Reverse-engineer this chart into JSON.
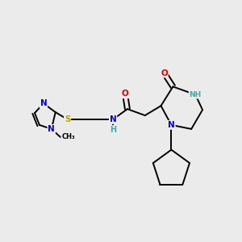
{
  "background_color": "#ebebeb",
  "atom_colors": {
    "C": "#000000",
    "N": "#0000dd",
    "O": "#dd0000",
    "S": "#aaaa00",
    "NH": "#44aaaa",
    "H": "#44aaaa"
  },
  "lw": 1.4
}
